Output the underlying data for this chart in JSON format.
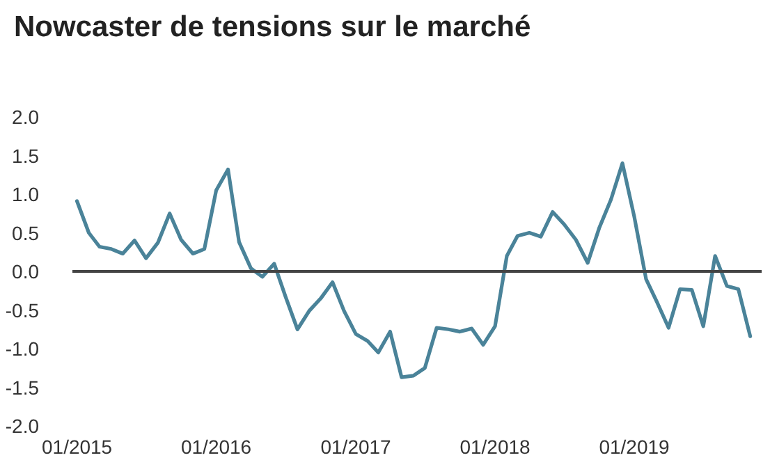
{
  "chart_data": {
    "type": "line",
    "title": "Nowcaster de tensions sur le marché",
    "x": [
      "2015-01",
      "2015-02",
      "2015-03",
      "2015-04",
      "2015-05",
      "2015-06",
      "2015-07",
      "2015-08",
      "2015-09",
      "2015-10",
      "2015-11",
      "2015-12",
      "2016-01",
      "2016-02",
      "2016-03",
      "2016-04",
      "2016-05",
      "2016-06",
      "2016-07",
      "2016-08",
      "2016-09",
      "2016-10",
      "2016-11",
      "2016-12",
      "2017-01",
      "2017-02",
      "2017-03",
      "2017-04",
      "2017-05",
      "2017-06",
      "2017-07",
      "2017-08",
      "2017-09",
      "2017-10",
      "2017-11",
      "2017-12",
      "2018-01",
      "2018-02",
      "2018-03",
      "2018-04",
      "2018-05",
      "2018-06",
      "2018-07",
      "2018-08",
      "2018-09",
      "2018-10",
      "2018-11",
      "2018-12",
      "2019-01",
      "2019-02",
      "2019-03",
      "2019-04",
      "2019-05",
      "2019-06",
      "2019-07",
      "2019-08",
      "2019-09",
      "2019-10",
      "2019-11"
    ],
    "series": [
      {
        "color": "#4a8399",
        "values": [
          0.91,
          0.5,
          0.32,
          0.29,
          0.23,
          0.4,
          0.17,
          0.37,
          0.75,
          0.41,
          0.23,
          0.29,
          1.05,
          1.32,
          0.38,
          0.04,
          -0.07,
          0.1,
          -0.33,
          -0.75,
          -0.51,
          -0.35,
          -0.14,
          -0.51,
          -0.81,
          -0.9,
          -1.05,
          -0.78,
          -1.37,
          -1.35,
          -1.25,
          -0.73,
          -0.75,
          -0.78,
          -0.74,
          -0.95,
          -0.71,
          0.2,
          0.46,
          0.5,
          0.45,
          0.77,
          0.61,
          0.41,
          0.11,
          0.56,
          0.93,
          1.4,
          0.71,
          -0.1,
          -0.39,
          -0.73,
          -0.23,
          -0.24,
          -0.71,
          0.2,
          -0.19,
          -0.23,
          -0.84
        ]
      }
    ],
    "xlim": [
      "2014-12-20",
      "2019-12"
    ],
    "xticks": [
      {
        "value": "2015-01",
        "label": "01/2015"
      },
      {
        "value": "2016-01",
        "label": "01/2016"
      },
      {
        "value": "2017-01",
        "label": "01/2017"
      },
      {
        "value": "2018-01",
        "label": "01/2018"
      },
      {
        "value": "2019-01",
        "label": "01/2019"
      }
    ],
    "ylim": [
      -2,
      2
    ],
    "yticks": [
      {
        "value": -2,
        "label": "-2.0"
      },
      {
        "value": -1.5,
        "label": "-1.5"
      },
      {
        "value": -1,
        "label": "-1.0"
      },
      {
        "value": -0.5,
        "label": "-0.5"
      },
      {
        "value": 0,
        "label": "0.0"
      },
      {
        "value": 0.5,
        "label": "0.5"
      },
      {
        "value": 1,
        "label": "1.0"
      },
      {
        "value": 1.5,
        "label": "1.5"
      },
      {
        "value": 2,
        "label": "2.0"
      }
    ],
    "ref_lines": [
      {
        "axis": "y",
        "value": 0,
        "color": "#444444"
      }
    ],
    "grid": false,
    "marker": "none",
    "line_style": "solid"
  }
}
